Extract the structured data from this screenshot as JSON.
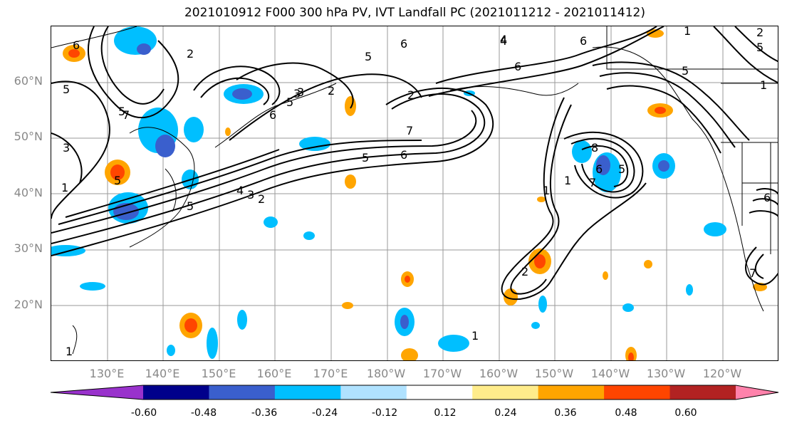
{
  "title": "2021010912 F000 300 hPa PV, IVT Landfall PC (2021011212 - 2021011412)",
  "lat_labels": [
    "60°N",
    "50°N",
    "40°N",
    "30°N",
    "20°N"
  ],
  "lon_labels": [
    "130°E",
    "140°E",
    "150°E",
    "160°E",
    "170°E",
    "180°W",
    "170°W",
    "160°W",
    "150°W",
    "140°W",
    "130°W",
    "120°W"
  ],
  "colorbar": {
    "colors": [
      "#9932CC",
      "#00008B",
      "#3A5FCD",
      "#00BFFF",
      "#B0E2FF",
      "#FFFFFF",
      "#FFEC8B",
      "#FFA500",
      "#FF4500",
      "#B22222",
      "#FF82AB"
    ],
    "tick_labels": [
      "-0.60",
      "-0.48",
      "-0.36",
      "-0.24",
      "-0.12",
      "0.12",
      "0.24",
      "0.36",
      "0.48",
      "0.60"
    ]
  },
  "contour_labels": [
    "6",
    "2",
    "5",
    "5",
    "6",
    "4",
    "2",
    "7",
    "3",
    "5",
    "4",
    "3",
    "2",
    "5",
    "3",
    "1",
    "6",
    "5",
    "6",
    "5",
    "7",
    "1",
    "1",
    "6",
    "8",
    "5",
    "6",
    "7",
    "1",
    "2",
    "5",
    "6",
    "2",
    "1",
    "5",
    "6",
    "7",
    "4",
    "5",
    "3",
    "2",
    "1",
    "1"
  ]
}
